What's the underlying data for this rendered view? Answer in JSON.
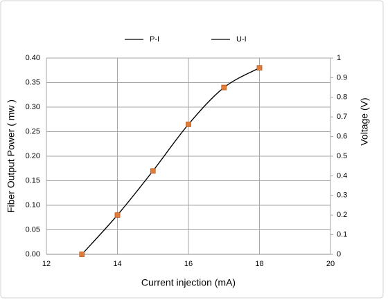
{
  "chart_data": {
    "type": "scatter",
    "x_label": "Current injection  (mA)",
    "y_label": "Fiber Output Power ( mw )",
    "y2_label": "Voltage  (V)",
    "x": [
      13,
      14,
      15,
      16,
      17,
      18
    ],
    "series": [
      {
        "name": "P-I",
        "color": "#000000",
        "marker_color": "#e07b39",
        "values": [
          0,
          0.08,
          0.17,
          0.265,
          0.34,
          0.38
        ]
      },
      {
        "name": "U-I",
        "color": "#000000",
        "marker_color": "#e07b39",
        "axis": "y2",
        "values": [
          0,
          0.2,
          0.425,
          0.6625,
          0.85,
          0.95
        ]
      }
    ],
    "xlim": [
      12,
      20
    ],
    "xticks": [
      12,
      14,
      16,
      18,
      20
    ],
    "ylim": [
      0,
      0.4
    ],
    "yticks": [
      {
        "value": 0,
        "label": "0.00"
      },
      {
        "value": 0.05,
        "label": "0.05"
      },
      {
        "value": 0.1,
        "label": "0.10"
      },
      {
        "value": 0.15,
        "label": "0.15"
      },
      {
        "value": 0.2,
        "label": "0.20"
      },
      {
        "value": 0.25,
        "label": "0.25"
      },
      {
        "value": 0.3,
        "label": "0.30"
      },
      {
        "value": 0.35,
        "label": "0.35"
      },
      {
        "value": 0.4,
        "label": "0.40"
      }
    ],
    "y2lim": [
      0,
      1
    ],
    "y2ticks": [
      0,
      0.1,
      0.2,
      0.3,
      0.4,
      0.5,
      0.6,
      0.7,
      0.8,
      0.9,
      1
    ],
    "grid": true,
    "smooth": true,
    "legend": "top"
  }
}
